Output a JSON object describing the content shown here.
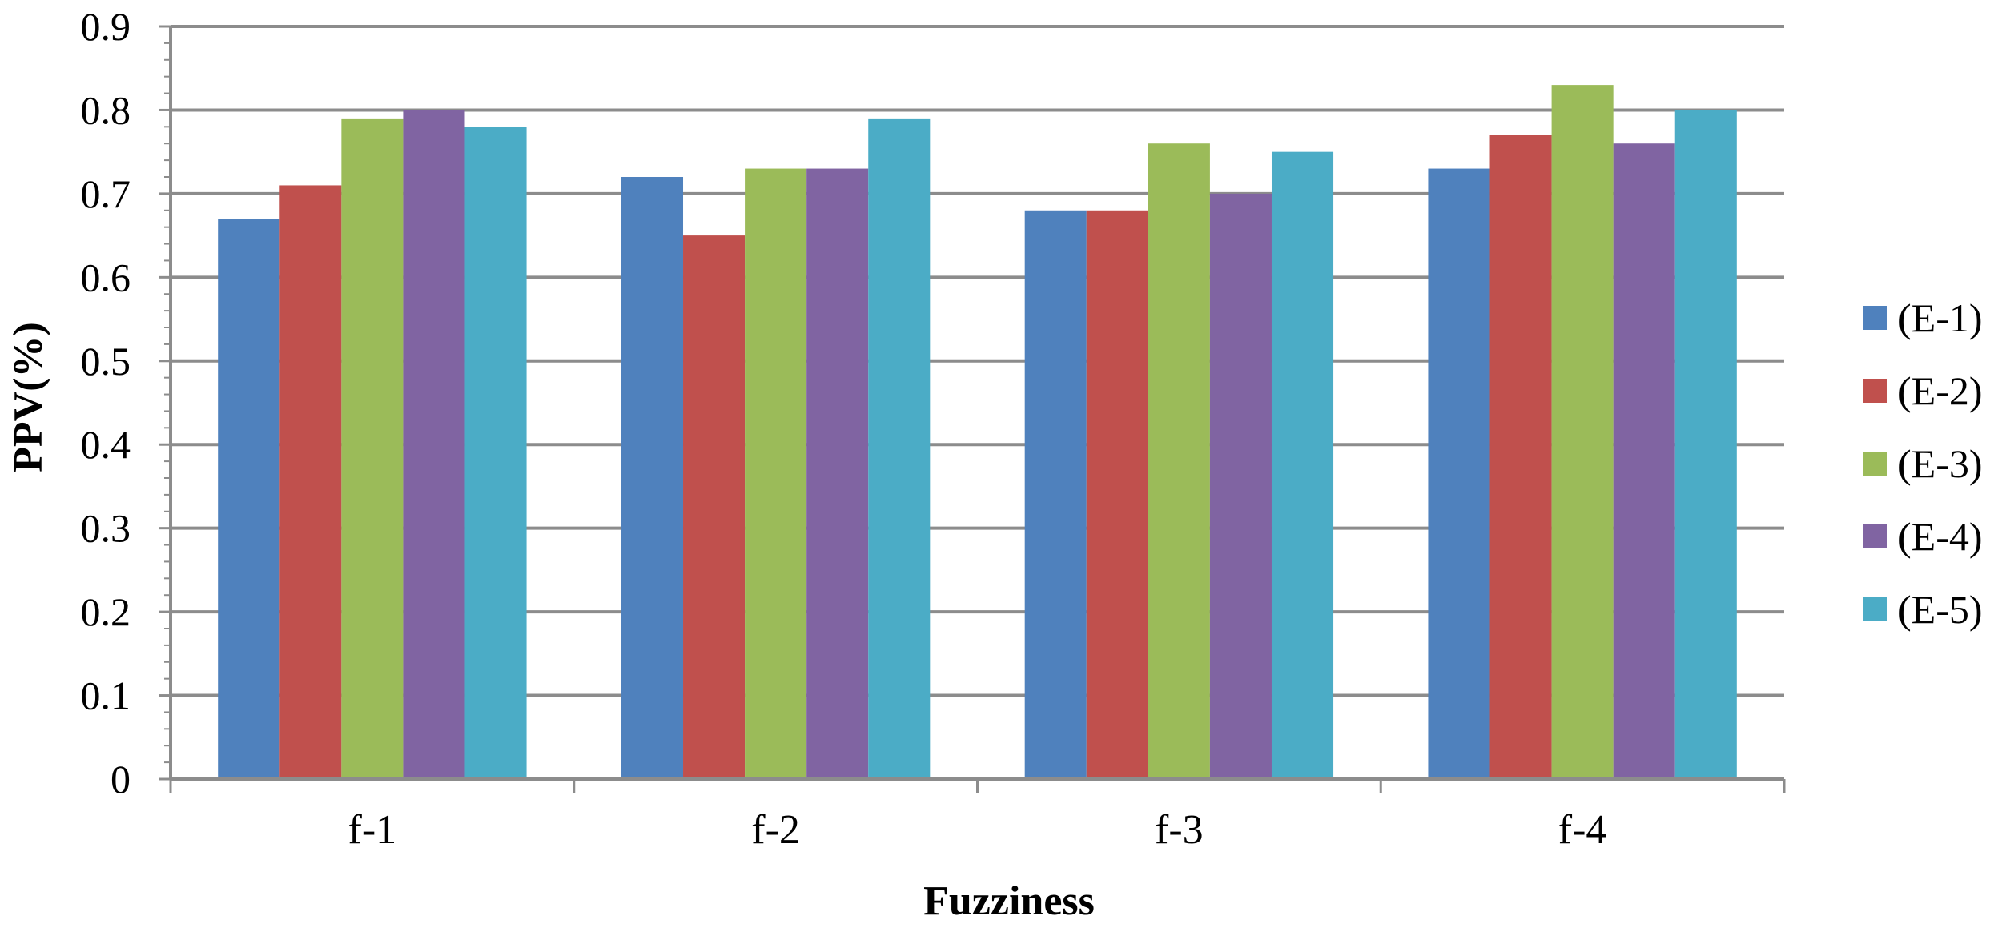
{
  "chart_data": {
    "type": "bar",
    "xlabel": "Fuzziness",
    "ylabel": "PPV(%)",
    "categories": [
      "f-1",
      "f-2",
      "f-3",
      "f-4"
    ],
    "ylim": [
      0,
      0.9
    ],
    "yticks": [
      "0",
      "0.1",
      "0.2",
      "0.3",
      "0.4",
      "0.5",
      "0.6",
      "0.7",
      "0.8",
      "0.9"
    ],
    "grid": true,
    "legend_position": "right",
    "series": [
      {
        "name": "(E-1)",
        "color": "#4F81BD",
        "values": [
          0.67,
          0.72,
          0.68,
          0.73
        ]
      },
      {
        "name": "(E-2)",
        "color": "#C0504D",
        "values": [
          0.71,
          0.65,
          0.68,
          0.77
        ]
      },
      {
        "name": "(E-3)",
        "color": "#9BBB59",
        "values": [
          0.79,
          0.73,
          0.76,
          0.83
        ]
      },
      {
        "name": "(E-4)",
        "color": "#8064A2",
        "values": [
          0.8,
          0.73,
          0.7,
          0.76
        ]
      },
      {
        "name": "(E-5)",
        "color": "#4BACC6",
        "values": [
          0.78,
          0.79,
          0.75,
          0.8
        ]
      }
    ]
  }
}
